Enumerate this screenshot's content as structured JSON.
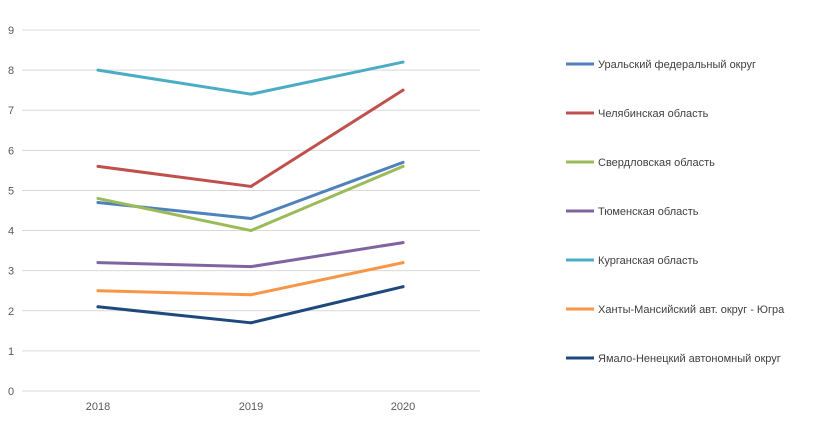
{
  "chart_data": {
    "type": "line",
    "title": "",
    "xlabel": "",
    "ylabel": "",
    "x": [
      "2018",
      "2019",
      "2020"
    ],
    "ylim": [
      0,
      9
    ],
    "yticks": [
      0,
      1,
      2,
      3,
      4,
      5,
      6,
      7,
      8,
      9
    ],
    "grid": true,
    "legend_position": "right",
    "series": [
      {
        "name": "Уральский федеральный округ",
        "values": [
          4.7,
          4.3,
          5.7
        ],
        "color": "#4F81BD"
      },
      {
        "name": "Челябинская область",
        "values": [
          5.6,
          5.1,
          7.5
        ],
        "color": "#C0504D"
      },
      {
        "name": "Свердловская область",
        "values": [
          4.8,
          4.0,
          5.6
        ],
        "color": "#9BBB59"
      },
      {
        "name": "Тюменская область",
        "values": [
          3.2,
          3.1,
          3.7
        ],
        "color": "#8064A2"
      },
      {
        "name": "Курганская область",
        "values": [
          8.0,
          7.4,
          8.2
        ],
        "color": "#4BACC6"
      },
      {
        "name": "Ханты-Мансийский авт. округ - Югра",
        "values": [
          2.5,
          2.4,
          3.2
        ],
        "color": "#F79646"
      },
      {
        "name": "Ямало-Ненецкий автономный округ",
        "values": [
          2.1,
          1.7,
          2.6
        ],
        "color": "#1F497D"
      }
    ]
  }
}
